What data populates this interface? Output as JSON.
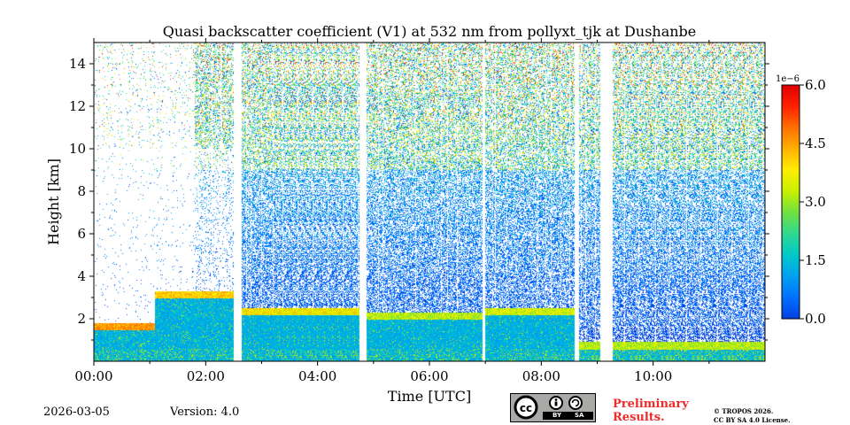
{
  "chart_data": {
    "type": "heatmap",
    "title": "Quasi backscatter coefficient (V1) at 532 nm from pollyxt_tjk at Dushanbe",
    "xlabel": "Time [UTC]",
    "ylabel": "Height [km]",
    "xlim_hours": [
      0,
      12
    ],
    "ylim_km": [
      0,
      15
    ],
    "x_ticks": [
      {
        "value": 0,
        "label": "00:00"
      },
      {
        "value": 2,
        "label": "02:00"
      },
      {
        "value": 4,
        "label": "04:00"
      },
      {
        "value": 6,
        "label": "06:00"
      },
      {
        "value": 8,
        "label": "08:00"
      },
      {
        "value": 10,
        "label": "10:00"
      }
    ],
    "y_ticks": [
      {
        "value": 2,
        "label": "2"
      },
      {
        "value": 4,
        "label": "4"
      },
      {
        "value": 6,
        "label": "6"
      },
      {
        "value": 8,
        "label": "8"
      },
      {
        "value": 10,
        "label": "10"
      },
      {
        "value": 12,
        "label": "12"
      },
      {
        "value": 14,
        "label": "14"
      }
    ],
    "colorbar": {
      "scale_label": "1e−6",
      "range": [
        0.0,
        6.0
      ],
      "ticks": [
        {
          "value": 0.0,
          "label": "0.0"
        },
        {
          "value": 1.5,
          "label": "1.5"
        },
        {
          "value": 3.0,
          "label": "3.0"
        },
        {
          "value": 4.5,
          "label": "4.5"
        },
        {
          "value": 6.0,
          "label": "6.0"
        }
      ],
      "colormap": [
        "#0040e0",
        "#0070ff",
        "#00a0f0",
        "#00c8c8",
        "#30d890",
        "#70e040",
        "#c8f000",
        "#ffee00",
        "#ffb000",
        "#ff7000",
        "#ff2000",
        "#e00000"
      ]
    },
    "data_gaps_hours": [
      [
        2.5,
        2.65
      ],
      [
        4.75,
        4.88
      ],
      [
        6.95,
        7.0
      ],
      [
        8.6,
        8.68
      ],
      [
        9.05,
        9.28
      ]
    ],
    "aerosol_layers": [
      {
        "start_h": 0.0,
        "end_h": 1.1,
        "top_km": 1.8,
        "peak": 4.0
      },
      {
        "start_h": 1.1,
        "end_h": 2.5,
        "top_km": 3.3,
        "peak": 3.5
      },
      {
        "start_h": 2.65,
        "end_h": 4.75,
        "top_km": 2.5,
        "peak": 3.2
      },
      {
        "start_h": 4.88,
        "end_h": 6.95,
        "top_km": 2.3,
        "peak": 2.6
      },
      {
        "start_h": 7.0,
        "end_h": 8.6,
        "top_km": 2.5,
        "peak": 2.8
      },
      {
        "start_h": 8.68,
        "end_h": 12.0,
        "top_km": 0.9,
        "peak": 2.6
      }
    ]
  },
  "footer": {
    "date": "2026-03-05",
    "version": "Version: 4.0",
    "license_badge": {
      "by": "BY",
      "sa": "SA"
    },
    "preliminary": [
      "Preliminary",
      "Results."
    ],
    "copyright": [
      "© TROPOS 2026.",
      "CC BY SA 4.0 License."
    ]
  }
}
